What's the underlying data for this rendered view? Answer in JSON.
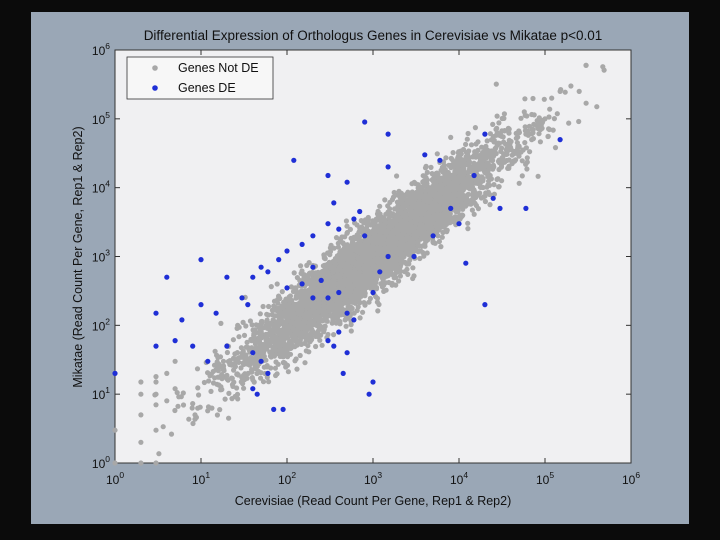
{
  "chart_data": {
    "type": "scatter",
    "title": "Differential Expression of Orthologus Genes in Cerevisiae vs Mikatae p<0.01",
    "xlabel": "Cerevisiae (Read Count Per Gene, Rep1 & Rep2)",
    "ylabel": "Mikatae (Read Count Per Gene, Rep1 & Rep2)",
    "xscale": "log",
    "yscale": "log",
    "xlim": [
      1,
      1000000
    ],
    "ylim": [
      1,
      1000000
    ],
    "x_ticks": [
      1,
      10,
      100,
      1000,
      10000,
      100000,
      1000000
    ],
    "y_ticks": [
      1,
      10,
      100,
      1000,
      10000,
      100000,
      1000000
    ],
    "legend_position": "top-left",
    "grid": false,
    "series": [
      {
        "name": "Genes Not DE",
        "color": "#a8a8a8",
        "trend": {
          "center_log_x": 3.0,
          "center_log_y": 3.0,
          "sigma_log_x": 0.75,
          "spread_log_y": 0.25,
          "count": 5200
        },
        "points": [
          [
            300000,
            600000
          ],
          [
            200000,
            300000
          ],
          [
            400000,
            150000
          ],
          [
            150000,
            250000
          ],
          [
            250000,
            250000
          ],
          [
            100000,
            100000
          ],
          [
            80000,
            80000
          ],
          [
            60000,
            60000
          ],
          [
            50000,
            40000
          ],
          [
            70000,
            50000
          ],
          [
            1,
            3
          ],
          [
            1,
            20
          ],
          [
            2,
            5
          ],
          [
            2,
            10
          ],
          [
            2,
            15
          ],
          [
            3,
            7
          ],
          [
            3,
            10
          ],
          [
            3,
            15
          ],
          [
            3,
            18
          ],
          [
            4,
            8
          ],
          [
            4,
            20
          ],
          [
            5,
            12
          ],
          [
            5,
            30
          ],
          [
            2,
            2
          ],
          [
            3,
            3
          ],
          [
            1,
            1
          ],
          [
            2,
            1
          ],
          [
            3,
            1
          ]
        ]
      },
      {
        "name": "Genes DE",
        "color": "#1f2fd6",
        "points": [
          [
            1,
            20
          ],
          [
            3,
            50
          ],
          [
            3,
            150
          ],
          [
            4,
            500
          ],
          [
            5,
            60
          ],
          [
            6,
            120
          ],
          [
            8,
            50
          ],
          [
            10,
            200
          ],
          [
            10,
            900
          ],
          [
            12,
            30
          ],
          [
            20,
            50
          ],
          [
            15,
            150
          ],
          [
            20,
            500
          ],
          [
            30,
            250
          ],
          [
            35,
            200
          ],
          [
            40,
            40
          ],
          [
            45,
            10
          ],
          [
            40,
            12
          ],
          [
            50,
            30
          ],
          [
            40,
            500
          ],
          [
            50,
            700
          ],
          [
            60,
            600
          ],
          [
            60,
            20
          ],
          [
            80,
            900
          ],
          [
            90,
            6
          ],
          [
            70,
            6
          ],
          [
            100,
            1200
          ],
          [
            150,
            1500
          ],
          [
            120,
            25000
          ],
          [
            200,
            700
          ],
          [
            300,
            15000
          ],
          [
            200,
            2000
          ],
          [
            300,
            3000
          ],
          [
            350,
            6000
          ],
          [
            400,
            2500
          ],
          [
            500,
            12000
          ],
          [
            600,
            3500
          ],
          [
            700,
            4500
          ],
          [
            800,
            2000
          ],
          [
            400,
            300
          ],
          [
            500,
            150
          ],
          [
            400,
            80
          ],
          [
            350,
            50
          ],
          [
            450,
            20
          ],
          [
            800,
            90000
          ],
          [
            1000,
            300
          ],
          [
            1200,
            600
          ],
          [
            1500,
            1000
          ],
          [
            1500,
            20000
          ],
          [
            600,
            120
          ],
          [
            300,
            60
          ],
          [
            500,
            40
          ],
          [
            1000,
            15
          ],
          [
            900,
            10
          ],
          [
            1500,
            60000
          ],
          [
            3000,
            1000
          ],
          [
            4000,
            30000
          ],
          [
            5000,
            2000
          ],
          [
            8000,
            5000
          ],
          [
            6000,
            25000
          ],
          [
            10000,
            3000
          ],
          [
            15000,
            15000
          ],
          [
            12000,
            800
          ],
          [
            20000,
            200
          ],
          [
            20000,
            60000
          ],
          [
            25000,
            7000
          ],
          [
            30000,
            5000
          ],
          [
            150000,
            50000
          ],
          [
            60000,
            5000
          ],
          [
            100,
            350
          ],
          [
            150,
            400
          ],
          [
            200,
            250
          ],
          [
            250,
            450
          ],
          [
            300,
            250
          ]
        ]
      }
    ]
  }
}
